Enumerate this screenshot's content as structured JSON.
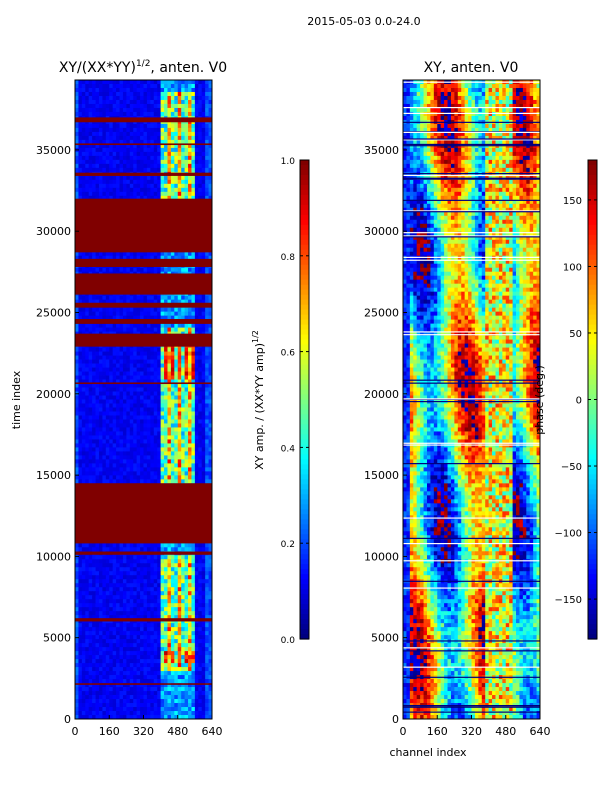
{
  "figure": {
    "suptitle": "2015-05-03 0.0-24.0"
  },
  "chart_data": [
    {
      "type": "heatmap",
      "title": "XY/(XX*YY)",
      "title_sup": "1/2",
      "title_suffix": ", anten. V0",
      "xlabel": "",
      "ylabel": "time index",
      "xlim": [
        0,
        640
      ],
      "ylim": [
        0,
        39300
      ],
      "xticks": [
        "0",
        "160",
        "320",
        "480",
        "640"
      ],
      "xtick_values": [
        0,
        160,
        320,
        480,
        640
      ],
      "yticks": [
        "0",
        "5000",
        "10000",
        "15000",
        "20000",
        "25000",
        "30000",
        "35000"
      ],
      "ytick_values": [
        0,
        5000,
        10000,
        15000,
        20000,
        25000,
        30000,
        35000
      ],
      "colorbar": {
        "label": "XY amp. / (XX*YY amp)",
        "label_sup": "1/2",
        "range": [
          0,
          1
        ],
        "ticks": [
          "0.0",
          "0.2",
          "0.4",
          "0.6",
          "0.8",
          "1.0"
        ],
        "tick_values": [
          0,
          0.2,
          0.4,
          0.6,
          0.8,
          1.0
        ],
        "colormap": "jet"
      },
      "flagged_bands": [
        [
          2100,
          2200
        ],
        [
          6000,
          6200
        ],
        [
          10100,
          10300
        ],
        [
          10800,
          14500
        ],
        [
          20600,
          20700
        ],
        [
          22900,
          23700
        ],
        [
          24300,
          24600
        ],
        [
          25300,
          25600
        ],
        [
          26100,
          27400
        ],
        [
          27800,
          28300
        ],
        [
          28700,
          32000
        ],
        [
          33400,
          33600
        ],
        [
          35300,
          35400
        ],
        [
          36700,
          37000
        ]
      ],
      "flag_value": 1.0
    },
    {
      "type": "heatmap",
      "title": "XY, anten. V0",
      "xlabel": "channel index",
      "ylabel": "",
      "xlim": [
        0,
        640
      ],
      "ylim": [
        0,
        39300
      ],
      "xticks": [
        "0",
        "160",
        "320",
        "480",
        "640"
      ],
      "xtick_values": [
        0,
        160,
        320,
        480,
        640
      ],
      "yticks": [
        "0",
        "5000",
        "10000",
        "15000",
        "20000",
        "25000",
        "30000",
        "35000"
      ],
      "ytick_values": [
        0,
        5000,
        10000,
        15000,
        20000,
        25000,
        30000,
        35000
      ],
      "colorbar": {
        "label": "phase (deg.)",
        "range": [
          -180,
          180
        ],
        "ticks": [
          "−150",
          "−100",
          "−50",
          "0",
          "50",
          "100",
          "150"
        ],
        "tick_values": [
          -150,
          -100,
          -50,
          0,
          50,
          100,
          150
        ],
        "colormap": "jet"
      }
    }
  ]
}
